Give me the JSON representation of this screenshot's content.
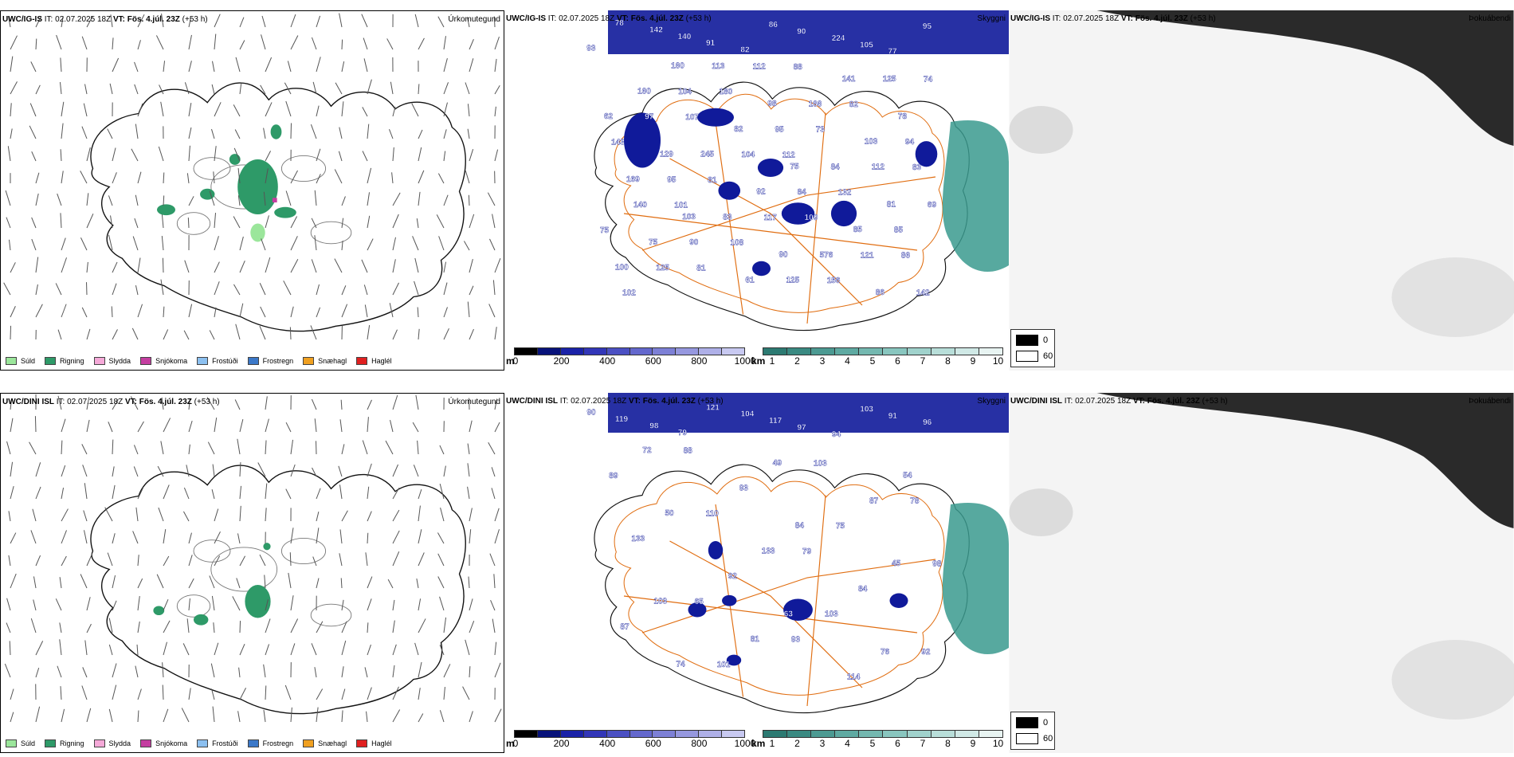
{
  "colors": {
    "precip_rain": "#2e9a68",
    "precip_drizzle": "#9be69b",
    "precip_sleet": "#f5a9d8",
    "precip_snow": "#c43ea0",
    "precip_freezing_drizzle": "#8cc0f0",
    "precip_freezing_rain": "#3b78c8",
    "precip_snow_grains": "#f0a020",
    "precip_hail": "#e02020",
    "cloudbase_deep": "#101a9a",
    "cloudvis_teal": "#3a9a8e",
    "roads": "#e06d10",
    "land_cloud": "#f3e0d0",
    "rivers": "#7a8ee8"
  },
  "rows": [
    {
      "panels": [
        {
          "id": "precip-type",
          "title_model": "UWC/IG-IS",
          "title_it_label": "IT:",
          "title_it": "02.07.2025 18Z",
          "title_vt_label": "VT:",
          "title_vt": "Fös. 4.júl. 23Z",
          "title_lead": "(+53 h)",
          "corner_label": "Úrkomutegund"
        },
        {
          "id": "cloud-base",
          "title_model": "UWC/IG-IS",
          "title_it_label": "IT:",
          "title_it": "02.07.2025 18Z",
          "title_vt_label": "VT:",
          "title_vt": "Fös. 4.júl. 23Z",
          "title_lead": "(+53 h)",
          "corner_label": "Skyggni",
          "labels": [
            "93",
            "78",
            "142",
            "140",
            "91",
            "82",
            "86",
            "90",
            "224",
            "105",
            "77",
            "95",
            "112",
            "101",
            "86",
            "88",
            "107",
            "83",
            "109",
            "81",
            "74",
            "73",
            "81",
            "75",
            "156",
            "180",
            "143",
            "132",
            "108",
            "102",
            "82",
            "104",
            "140",
            "121",
            "112",
            "97",
            "112",
            "117",
            "125",
            "125",
            "95",
            "95",
            "85",
            "125",
            "104",
            "94",
            "84",
            "90",
            "142",
            "166",
            "245",
            "69",
            "576",
            "113",
            "62",
            "84",
            "83",
            "100",
            "141",
            "82",
            "169",
            "85",
            "61",
            "160",
            "103",
            "92",
            "75",
            "86",
            "98",
            "129",
            "81",
            "90",
            "160",
            "78",
            "75",
            "103"
          ]
        },
        {
          "id": "fog",
          "title_model": "UWC/IG-IS",
          "title_it_label": "IT:",
          "title_it": "02.07.2025 18Z",
          "title_vt_label": "VT:",
          "title_vt": "Fös. 4.júl. 23Z",
          "title_lead": "(+53 h)",
          "corner_label": "Þokuábendi"
        }
      ]
    },
    {
      "panels": [
        {
          "id": "precip-type",
          "title_model": "UWC/DINI ISL",
          "title_it_label": "IT:",
          "title_it": "02.07.2025 18Z",
          "title_vt_label": "VT:",
          "title_vt": "Fös. 4.júl. 23Z",
          "title_lead": "(+53 h)",
          "corner_label": "Úrkomutegund"
        },
        {
          "id": "cloud-base",
          "title_model": "UWC/DINI ISL",
          "title_it_label": "IT:",
          "title_it": "02.07.2025 18Z",
          "title_vt_label": "VT:",
          "title_vt": "Fös. 4.júl. 23Z",
          "title_lead": "(+53 h)",
          "corner_label": "Skyggni",
          "labels": [
            "90",
            "119",
            "98",
            "79",
            "121",
            "104",
            "117",
            "97",
            "94",
            "103",
            "91",
            "96",
            "93",
            "88",
            "78",
            "79",
            "65",
            "92",
            "103",
            "110",
            "98",
            "103",
            "101",
            "89",
            "75",
            "92",
            "87",
            "114",
            "93",
            "133",
            "84",
            "81",
            "72",
            "87",
            "133",
            "103",
            "76",
            "49",
            "50",
            "45",
            "63",
            "74",
            "54",
            "84"
          ]
        },
        {
          "id": "fog",
          "title_model": "UWC/DINI ISL",
          "title_it_label": "IT:",
          "title_it": "02.07.2025 18Z",
          "title_vt_label": "VT:",
          "title_vt": "Fös. 4.júl. 23Z",
          "title_lead": "(+53 h)",
          "corner_label": "Þokuábendi"
        }
      ]
    }
  ],
  "precip_legend": [
    "Súld",
    "Rigning",
    "Slydda",
    "Snjókoma",
    "Frostúði",
    "Frostregn",
    "Snæhagl",
    "Haglél"
  ],
  "cbar_m": {
    "unit": "m",
    "ticks": [
      "0",
      "200",
      "400",
      "600",
      "800",
      "1000"
    ]
  },
  "cbar_km": {
    "unit": "km",
    "ticks": [
      "1",
      "2",
      "3",
      "4",
      "5",
      "6",
      "7",
      "8",
      "9",
      "10"
    ]
  },
  "fog_legend": {
    "v0": "0",
    "v1": "60"
  }
}
